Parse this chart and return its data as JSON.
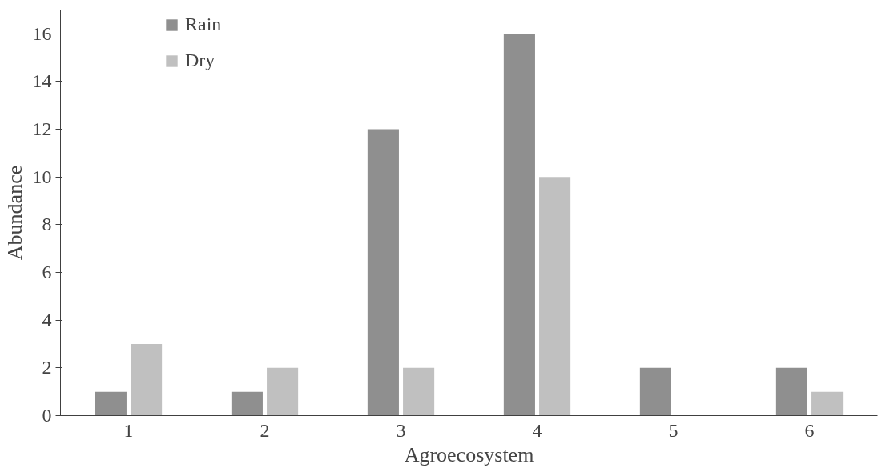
{
  "chart_data": {
    "type": "bar",
    "xlabel": "Agroecosystem",
    "ylabel": "Abundance",
    "categories": [
      "1",
      "2",
      "3",
      "4",
      "5",
      "6"
    ],
    "series": [
      {
        "name": "Rain",
        "color": "#8f8f8f",
        "values": [
          1,
          1,
          12,
          16,
          2,
          2
        ]
      },
      {
        "name": "Dry",
        "color": "#c0c0c0",
        "values": [
          3,
          2,
          2,
          10,
          0,
          1
        ]
      }
    ],
    "ylim": [
      0,
      17
    ],
    "yticks": [
      0,
      2,
      4,
      6,
      8,
      10,
      12,
      14,
      16
    ],
    "grid": false,
    "legend": "top left"
  }
}
